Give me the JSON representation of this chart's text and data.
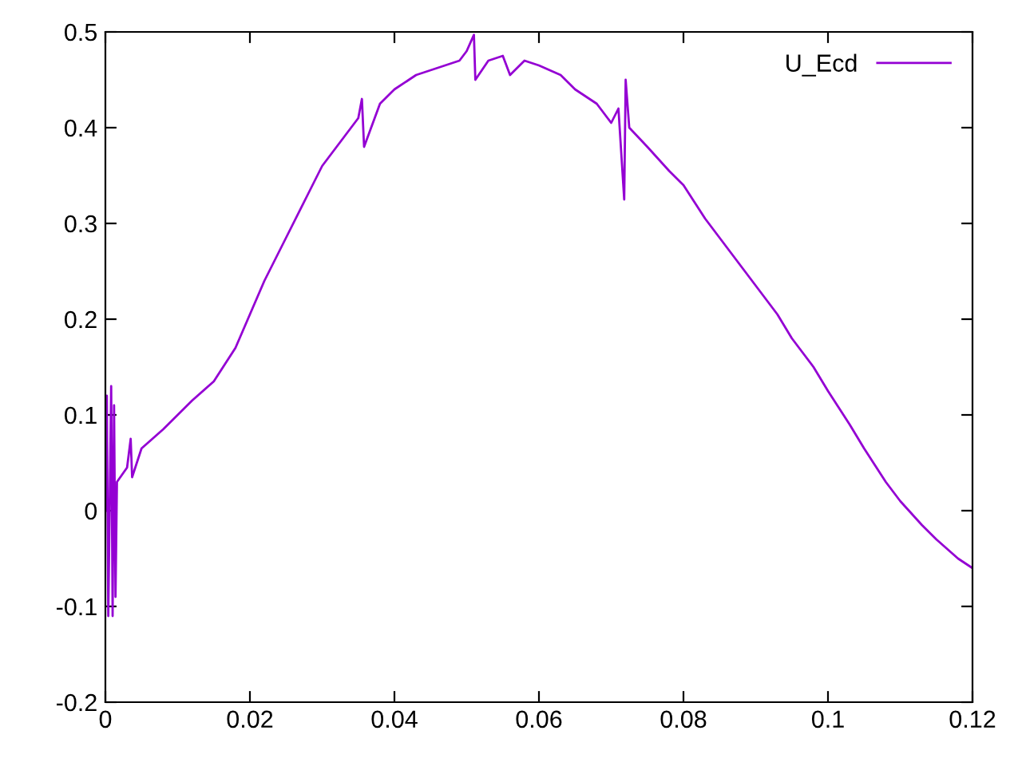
{
  "chart_data": {
    "type": "line",
    "legend": "top right",
    "grid": false,
    "line_style": "solid",
    "marker": "none",
    "xlim": [
      0,
      0.12
    ],
    "xticks": [
      0,
      0.02,
      0.04,
      0.06,
      0.08,
      0.1,
      0.12
    ],
    "ylim": [
      -0.2,
      0.5
    ],
    "yticks": [
      -0.2,
      -0.1,
      0,
      0.1,
      0.2,
      0.3,
      0.4,
      0.5
    ],
    "series": [
      {
        "name": "U_Ecd",
        "color": "#9400d3",
        "x": [
          0,
          0.0002,
          0.0004,
          0.0006,
          0.0008,
          0.001,
          0.0012,
          0.0014,
          0.0016,
          0.003,
          0.0035,
          0.0037,
          0.005,
          0.008,
          0.01,
          0.012,
          0.015,
          0.018,
          0.02,
          0.022,
          0.025,
          0.028,
          0.03,
          0.033,
          0.035,
          0.0355,
          0.0358,
          0.038,
          0.04,
          0.043,
          0.045,
          0.047,
          0.049,
          0.05,
          0.051,
          0.0512,
          0.053,
          0.055,
          0.056,
          0.058,
          0.06,
          0.063,
          0.065,
          0.068,
          0.07,
          0.071,
          0.0718,
          0.072,
          0.0725,
          0.075,
          0.078,
          0.08,
          0.083,
          0.085,
          0.088,
          0.09,
          0.093,
          0.095,
          0.098,
          0.1,
          0.103,
          0.105,
          0.108,
          0.11,
          0.113,
          0.115,
          0.118,
          0.12
        ],
        "values": [
          0,
          0.12,
          -0.11,
          0.01,
          0.13,
          -0.11,
          0.11,
          -0.09,
          0.03,
          0.045,
          0.075,
          0.035,
          0.065,
          0.085,
          0.1,
          0.115,
          0.135,
          0.17,
          0.205,
          0.24,
          0.285,
          0.33,
          0.36,
          0.39,
          0.41,
          0.43,
          0.38,
          0.425,
          0.44,
          0.455,
          0.46,
          0.465,
          0.47,
          0.48,
          0.497,
          0.45,
          0.47,
          0.475,
          0.455,
          0.47,
          0.465,
          0.455,
          0.44,
          0.425,
          0.405,
          0.42,
          0.325,
          0.45,
          0.4,
          0.38,
          0.355,
          0.34,
          0.305,
          0.285,
          0.255,
          0.235,
          0.205,
          0.18,
          0.15,
          0.125,
          0.09,
          0.065,
          0.03,
          0.01,
          -0.015,
          -0.03,
          -0.05,
          -0.06
        ]
      }
    ]
  }
}
